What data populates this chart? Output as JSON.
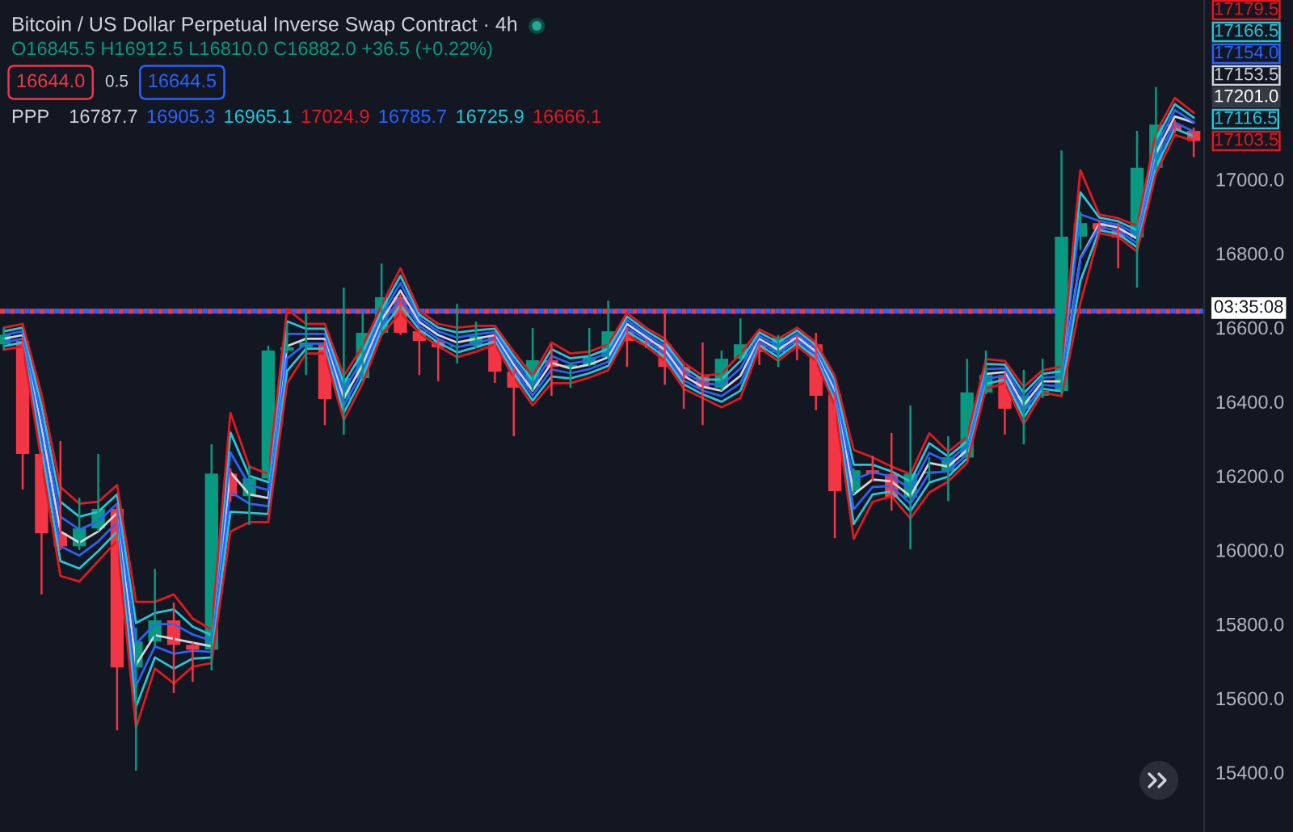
{
  "chart_data": {
    "type": "candlestick",
    "title": "Bitcoin / US Dollar Perpetual Inverse Swap Contract · 4h",
    "subtitle": "O16845.5 H16912.5 L16810.0 C16882.0 +36.5 (+0.22%)",
    "categories": [
      null,
      null,
      null,
      null,
      null,
      null,
      null,
      null,
      null,
      null,
      null,
      null,
      null,
      null,
      null,
      null,
      null,
      null,
      null,
      null,
      null,
      null,
      null,
      null,
      null,
      null,
      null,
      null,
      null,
      null,
      null,
      null,
      null,
      null,
      null,
      null,
      null,
      null,
      null,
      null,
      null,
      null,
      null,
      null,
      null,
      null,
      null,
      null,
      null,
      null,
      null,
      null,
      null,
      null,
      null,
      null,
      null,
      null,
      null,
      null,
      null,
      null,
      null,
      null
    ],
    "ohlc": [
      [
        16555,
        16600,
        16540,
        16581
      ],
      [
        16564,
        16575,
        16163,
        16259
      ],
      [
        16259,
        16265,
        15880,
        16045
      ],
      [
        16045,
        16294,
        16000,
        16010
      ],
      [
        16010,
        16141,
        16000,
        16058
      ],
      [
        16058,
        16259,
        16050,
        16111
      ],
      [
        16111,
        16120,
        15513,
        15683
      ],
      [
        15683,
        15790,
        15404,
        15753
      ],
      [
        15753,
        15949,
        15740,
        15810
      ],
      [
        15810,
        15858,
        15614,
        15744
      ],
      [
        15744,
        15750,
        15644,
        15731
      ],
      [
        15731,
        16285,
        15675,
        16206
      ],
      [
        16206,
        16220,
        16130,
        16145
      ],
      [
        16145,
        16228,
        16067,
        16193
      ],
      [
        16193,
        16551,
        16185,
        16538
      ],
      [
        16538,
        16612,
        16530,
        16547
      ],
      [
        16547,
        16642,
        16472,
        16560
      ],
      [
        16560,
        16565,
        16337,
        16407
      ],
      [
        16407,
        16708,
        16311,
        16464
      ],
      [
        16464,
        16642,
        16455,
        16586
      ],
      [
        16586,
        16773,
        16580,
        16682
      ],
      [
        16682,
        16690,
        16580,
        16586
      ],
      [
        16590,
        16600,
        16472,
        16564
      ],
      [
        16564,
        16570,
        16455,
        16547
      ],
      [
        16547,
        16664,
        16503,
        16551
      ],
      [
        16551,
        16616,
        16545,
        16577
      ],
      [
        16577,
        16585,
        16451,
        16481
      ],
      [
        16481,
        16490,
        16307,
        16438
      ],
      [
        16442,
        16599,
        16430,
        16512
      ],
      [
        16512,
        16555,
        16416,
        16494
      ],
      [
        16494,
        16505,
        16438,
        16500
      ],
      [
        16499,
        16599,
        16495,
        16520
      ],
      [
        16520,
        16673,
        16515,
        16590
      ],
      [
        16590,
        16600,
        16494,
        16564
      ],
      [
        16564,
        16570,
        16545,
        16555
      ],
      [
        16555,
        16647,
        16446,
        16494
      ],
      [
        16494,
        16500,
        16381,
        16468
      ],
      [
        16468,
        16560,
        16337,
        16438
      ],
      [
        16438,
        16538,
        16430,
        16516
      ],
      [
        16516,
        16625,
        16510,
        16555
      ],
      [
        16555,
        16560,
        16499,
        16534
      ],
      [
        16534,
        16580,
        16494,
        16573
      ],
      [
        16573,
        16580,
        16512,
        16555
      ],
      [
        16555,
        16586,
        16377,
        16416
      ],
      [
        16420,
        16425,
        16032,
        16159
      ],
      [
        16159,
        16220,
        16150,
        16215
      ],
      [
        16215,
        16254,
        16185,
        16205
      ],
      [
        16205,
        16316,
        16106,
        16141
      ],
      [
        16141,
        16390,
        16002,
        16206
      ],
      [
        16206,
        16250,
        16185,
        16212
      ],
      [
        16212,
        16307,
        16132,
        16250
      ],
      [
        16250,
        16516,
        16245,
        16425
      ],
      [
        16425,
        16538,
        16420,
        16472
      ],
      [
        16472,
        16480,
        16311,
        16381
      ],
      [
        16381,
        16486,
        16285,
        16416
      ],
      [
        16416,
        16516,
        16410,
        16429
      ],
      [
        16429,
        17078,
        16420,
        16845.5
      ],
      [
        16845.5,
        16912.5,
        16810.0,
        16882.0
      ],
      [
        16882,
        16890,
        16855,
        16865
      ],
      [
        16865,
        16882,
        16760,
        16843
      ],
      [
        16843,
        17131,
        16708,
        17031
      ],
      [
        17031,
        17249,
        17025,
        17148
      ],
      [
        17148,
        17160,
        17125,
        17131
      ],
      [
        17131,
        17140,
        17060,
        17103.5
      ]
    ],
    "series": [
      {
        "type": "line",
        "color": "#d1d4dc",
        "values": [
          16570,
          16580,
          16330,
          16050,
          16020,
          16050,
          16100,
          15690,
          15770,
          15760,
          15750,
          15740,
          16210,
          16150,
          16140,
          16550,
          16570,
          16570,
          16410,
          16500,
          16620,
          16700,
          16615,
          16580,
          16560,
          16570,
          16580,
          16500,
          16430,
          16505,
          16490,
          16500,
          16520,
          16610,
          16575,
          16540,
          16470,
          16440,
          16430,
          16470,
          16570,
          16540,
          16575,
          16535,
          16430,
          16150,
          16190,
          16185,
          16145,
          16235,
          16225,
          16270,
          16475,
          16480,
          16390,
          16455,
          16455,
          16787.7,
          16880,
          16870,
          16840,
          17070,
          17170,
          17153.5
        ]
      },
      {
        "type": "line",
        "color": "#2962ff",
        "values": [
          16580,
          16590,
          16360,
          16090,
          16055,
          16077,
          16125,
          15747,
          15800,
          15800,
          15772,
          15755,
          16263,
          16175,
          16162,
          16583,
          16583,
          16583,
          16430,
          16517,
          16633,
          16720,
          16625,
          16590,
          16573,
          16582,
          16588,
          16512,
          16443,
          16523,
          16503,
          16512,
          16532,
          16620,
          16583,
          16550,
          16482,
          16450,
          16445,
          16490,
          16578,
          16550,
          16583,
          16543,
          16443,
          16190,
          16210,
          16198,
          16165,
          16262,
          16238,
          16282,
          16488,
          16490,
          16407,
          16465,
          16468,
          16905.3,
          16888,
          16878,
          16852,
          17088,
          17187,
          17154.0
        ]
      },
      {
        "type": "line",
        "color": "#26c6da",
        "values": [
          16590,
          16600,
          16390,
          16130,
          16090,
          16103,
          16150,
          15803,
          15830,
          15840,
          15793,
          15770,
          16317,
          16200,
          16183,
          16617,
          16597,
          16597,
          16450,
          16533,
          16647,
          16740,
          16635,
          16600,
          16587,
          16593,
          16597,
          16523,
          16457,
          16542,
          16517,
          16523,
          16543,
          16630,
          16592,
          16560,
          16493,
          16460,
          16460,
          16510,
          16587,
          16560,
          16592,
          16552,
          16457,
          16230,
          16230,
          16212,
          16185,
          16288,
          16252,
          16293,
          16502,
          16500,
          16423,
          16475,
          16482,
          16965.1,
          16897,
          16887,
          16863,
          17107,
          17203,
          17166.5
        ]
      },
      {
        "type": "line",
        "color": "#e3191f",
        "values": [
          16600,
          16610,
          16420,
          16170,
          16125,
          16130,
          16175,
          15860,
          15860,
          15880,
          15815,
          15785,
          16370,
          16225,
          16205,
          16650,
          16610,
          16610,
          16470,
          16550,
          16660,
          16760,
          16645,
          16610,
          16600,
          16605,
          16605,
          16535,
          16470,
          16560,
          16530,
          16535,
          16555,
          16640,
          16600,
          16570,
          16505,
          16470,
          16475,
          16530,
          16595,
          16570,
          16600,
          16560,
          16470,
          16270,
          16250,
          16225,
          16205,
          16315,
          16265,
          16305,
          16515,
          16510,
          16440,
          16485,
          16495,
          17024.9,
          16905,
          16895,
          16875,
          17125,
          17220,
          17179.5
        ]
      },
      {
        "type": "line",
        "color": "#2962ff",
        "values": [
          16560,
          16570,
          16300,
          16010,
          15985,
          16023,
          16075,
          15633,
          15740,
          15720,
          15728,
          15725,
          16157,
          16125,
          16118,
          16517,
          16557,
          16557,
          16390,
          16483,
          16607,
          16680,
          16605,
          16570,
          16547,
          16558,
          16572,
          16488,
          16417,
          16487,
          16477,
          16488,
          16508,
          16600,
          16567,
          16530,
          16458,
          16430,
          16415,
          16450,
          16562,
          16530,
          16567,
          16527,
          16417,
          16110,
          16170,
          16172,
          16125,
          16208,
          16212,
          16258,
          16462,
          16470,
          16373,
          16445,
          16442,
          16785.7,
          16872,
          16862,
          16828,
          17052,
          17153,
          17129.5
        ]
      },
      {
        "type": "line",
        "color": "#26c6da",
        "values": [
          16550,
          16560,
          16270,
          15970,
          15950,
          15997,
          16050,
          15577,
          15710,
          15680,
          15707,
          15710,
          16103,
          16100,
          16097,
          16483,
          16543,
          16543,
          16370,
          16467,
          16593,
          16660,
          16595,
          16560,
          16533,
          16547,
          16563,
          16477,
          16403,
          16468,
          16463,
          16477,
          16497,
          16590,
          16558,
          16520,
          16447,
          16420,
          16400,
          16430,
          16553,
          16520,
          16558,
          16518,
          16403,
          16070,
          16150,
          16158,
          16105,
          16182,
          16198,
          16247,
          16448,
          16460,
          16357,
          16435,
          16428,
          16725.9,
          16863,
          16853,
          16817,
          17033,
          17137,
          17116.5
        ]
      },
      {
        "type": "line",
        "color": "#e3191f",
        "values": [
          16540,
          16550,
          16240,
          15930,
          15915,
          15970,
          16025,
          15520,
          15680,
          15640,
          15685,
          15695,
          16050,
          16075,
          16075,
          16450,
          16530,
          16530,
          16350,
          16450,
          16580,
          16640,
          16585,
          16550,
          16520,
          16535,
          16555,
          16465,
          16390,
          16450,
          16450,
          16465,
          16485,
          16580,
          16550,
          16510,
          16435,
          16410,
          16385,
          16410,
          16545,
          16510,
          16550,
          16510,
          16390,
          16030,
          16130,
          16145,
          16085,
          16155,
          16185,
          16235,
          16435,
          16450,
          16340,
          16425,
          16415,
          16666.1,
          16855,
          16845,
          16805,
          17015,
          17120,
          17103.5
        ]
      }
    ],
    "ylim": [
      15239,
      17484
    ],
    "yticks": [
      {
        "value": 15400,
        "label": "15400.0"
      },
      {
        "value": 15600,
        "label": "15600.0"
      },
      {
        "value": 15800,
        "label": "15800.0"
      },
      {
        "value": 16000,
        "label": "16000.0"
      },
      {
        "value": 16200,
        "label": "16200.0"
      },
      {
        "value": 16400,
        "label": "16400.0"
      },
      {
        "value": 16600,
        "label": "16600.0"
      },
      {
        "value": 16800,
        "label": "16800.0"
      },
      {
        "value": 17000,
        "label": "17000.0"
      }
    ],
    "tick_labels": "y",
    "ref_lines": [
      {
        "axis": "y",
        "value": 16644.0,
        "color": "#f23645",
        "line_style": "dotted"
      },
      {
        "axis": "y",
        "value": 16644.5,
        "color": "#2962ff",
        "line_style": "dotted"
      }
    ],
    "annotations": [
      "16644.0",
      "0.5",
      "16644.5",
      "PPP",
      "16787.7",
      "16905.3",
      "16965.1",
      "17024.9",
      "16785.7",
      "16725.9",
      "16666.1",
      "03:35:08",
      "17179.5",
      "17166.5",
      "17154.0",
      "17153.5",
      "17201.0",
      "17116.5",
      "17103.5"
    ]
  }
}
